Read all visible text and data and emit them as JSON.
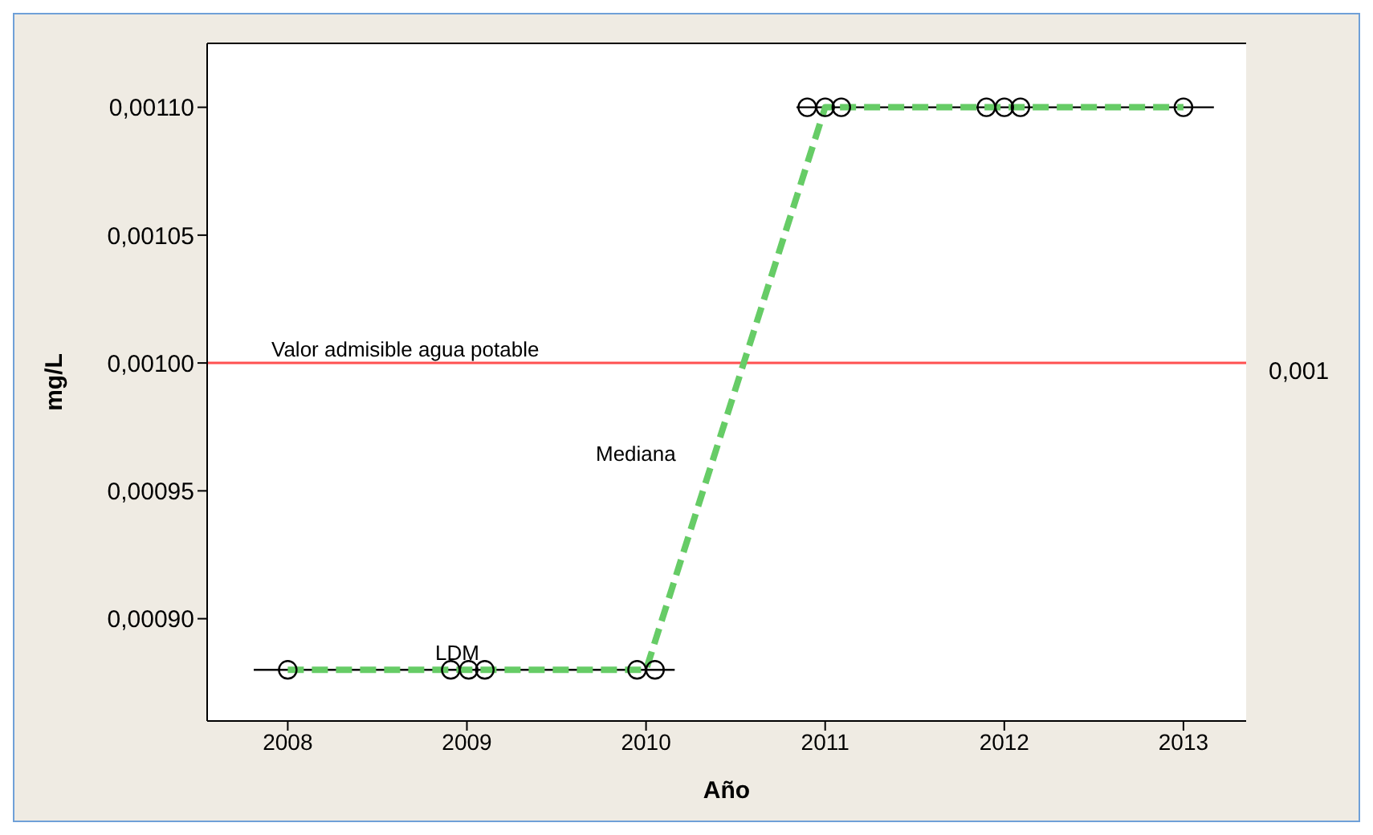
{
  "chart_data": {
    "type": "line",
    "xlabel": "Año",
    "ylabel": "mg/L",
    "xlim": [
      2007.55,
      2013.35
    ],
    "xticks": [
      2008,
      2009,
      2010,
      2011,
      2012,
      2013
    ],
    "ylim": [
      0.00086,
      0.001125
    ],
    "yticks": [
      {
        "value": 0.0009,
        "label": "0,00090"
      },
      {
        "value": 0.00095,
        "label": "0,00095"
      },
      {
        "value": 0.001,
        "label": "0,00100"
      },
      {
        "value": 0.00105,
        "label": "0,00105"
      },
      {
        "value": 0.0011,
        "label": "0,00110"
      }
    ],
    "grid": false,
    "legend": false,
    "series": [
      {
        "color": "#000000",
        "marker": "none",
        "x": [
          2007.81,
          2010.16
        ],
        "values": [
          0.00088,
          0.00088
        ]
      },
      {
        "color": "#000000",
        "marker": "none",
        "x": [
          2010.84,
          2013.17
        ],
        "values": [
          0.0011,
          0.0011
        ]
      },
      {
        "color": "#66cc66",
        "marker": "none",
        "line_style": "dashed",
        "x": [
          2008,
          2009,
          2010,
          2011,
          2012,
          2013
        ],
        "values": [
          0.00088,
          0.00088,
          0.00088,
          0.0011,
          0.0011,
          0.0011
        ]
      },
      {
        "type": "scatter",
        "color": "#000000",
        "marker": "circle",
        "x": [
          2008,
          2008.91,
          2009.01,
          2009.1,
          2009.95,
          2010.05,
          2010.9,
          2011,
          2011.09,
          2011.9,
          2012,
          2012.09,
          2013
        ],
        "values": [
          0.00088,
          0.00088,
          0.00088,
          0.00088,
          0.00088,
          0.00088,
          0.0011,
          0.0011,
          0.0011,
          0.0011,
          0.0011,
          0.0011,
          0.0011
        ]
      }
    ],
    "ref_lines": [
      {
        "axis": "y",
        "value": 0.001,
        "label": "Valor admisible agua potable",
        "color": "#ff5050"
      }
    ],
    "annotations": [
      "Mediana",
      "LDM",
      "0,001"
    ]
  }
}
